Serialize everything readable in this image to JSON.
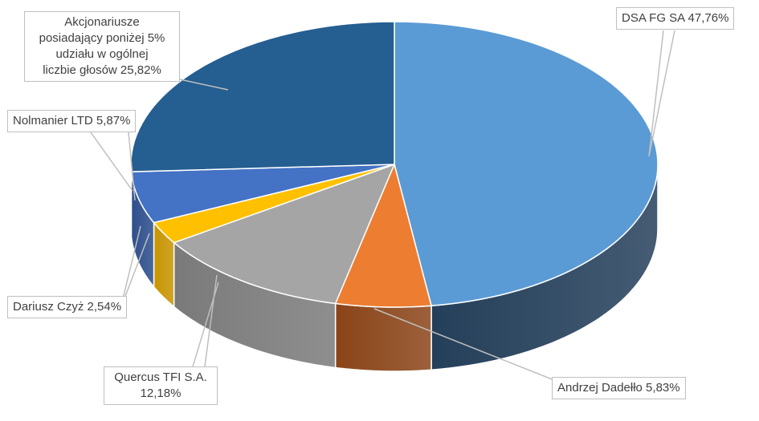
{
  "chart_data": {
    "type": "pie",
    "title": "",
    "series": [
      {
        "values": [
          47.76,
          5.83,
          12.18,
          2.54,
          5.87,
          25.82
        ]
      }
    ],
    "slices": [
      {
        "label": "DSA FG SA 47,76%",
        "value": 47.76,
        "color": "#5b9bd5",
        "side_color": "#243f5a"
      },
      {
        "label": "Andrzej Dadełło 5,83%",
        "value": 5.83,
        "color": "#ed7d31",
        "side_color": "#8a4418"
      },
      {
        "label": "Quercus TFI S.A. 12,18%",
        "lines": [
          "Quercus TFI S.A.",
          "12,18%"
        ],
        "value": 12.18,
        "color": "#a5a5a5",
        "side_color": "#7a7a7a"
      },
      {
        "label": "Dariusz Czyż 2,54%",
        "value": 2.54,
        "color": "#ffc000",
        "side_color": "#c79400"
      },
      {
        "label": "Nolmanier LTD 5,87%",
        "value": 5.87,
        "color": "#4472c4",
        "side_color": "#2c4e8c"
      },
      {
        "label": "Akcjonariusze posiadający poniżej 5% udziału w ogólnej liczbie głosów 25,82%",
        "lines": [
          "Akcjonariusze",
          "posiadający poniżej 5%",
          "udziału w ogólnej",
          "liczbie głosów 25,82%"
        ],
        "value": 25.82,
        "color": "#255e91",
        "side_color": "#1a4166"
      }
    ],
    "legend": "none",
    "data_labels": "callouts"
  }
}
